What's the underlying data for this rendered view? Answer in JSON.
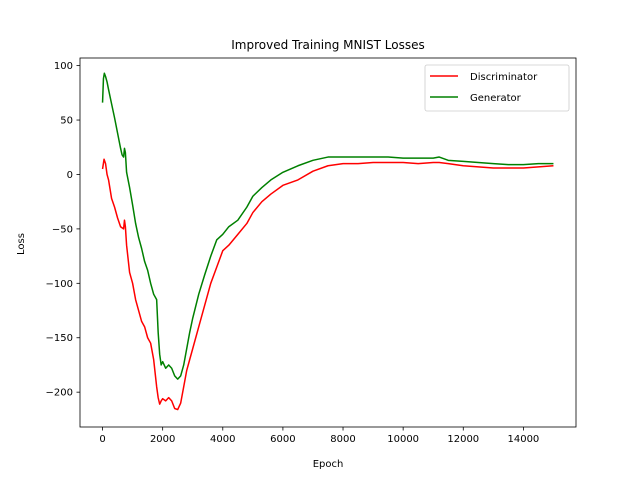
{
  "chart_data": {
    "type": "line",
    "title": "Improved Training MNIST Losses",
    "xlabel": "Epoch",
    "ylabel": "Loss",
    "xlim": [
      -750,
      15750
    ],
    "ylim": [
      -232,
      107
    ],
    "xticks": [
      0,
      2000,
      4000,
      6000,
      8000,
      10000,
      12000,
      14000
    ],
    "xtick_labels": [
      "0",
      "2000",
      "4000",
      "6000",
      "8000",
      "10000",
      "12000",
      "14000"
    ],
    "yticks": [
      100,
      50,
      0,
      -50,
      -100,
      -150,
      -200
    ],
    "ytick_labels": [
      "100",
      "50",
      "0",
      "−50",
      "−100",
      "−150",
      "−200"
    ],
    "grid": false,
    "legend_position": "upper right",
    "series": [
      {
        "name": "Discriminator",
        "color": "#ff0000",
        "x": [
          0,
          50,
          100,
          150,
          200,
          300,
          400,
          500,
          600,
          700,
          730,
          760,
          800,
          900,
          1000,
          1100,
          1200,
          1300,
          1400,
          1500,
          1600,
          1700,
          1800,
          1850,
          1900,
          1950,
          2000,
          2100,
          2200,
          2300,
          2400,
          2500,
          2600,
          2700,
          2800,
          2900,
          3000,
          3200,
          3400,
          3600,
          3800,
          4000,
          4200,
          4500,
          4800,
          5000,
          5300,
          5600,
          6000,
          6500,
          7000,
          7500,
          8000,
          8500,
          9000,
          9500,
          10000,
          10500,
          11000,
          11200,
          11500,
          12000,
          12500,
          13000,
          13500,
          14000,
          14500,
          15000
        ],
        "values": [
          5,
          14,
          10,
          0,
          -5,
          -22,
          -30,
          -40,
          -48,
          -50,
          -42,
          -48,
          -65,
          -90,
          -100,
          -115,
          -125,
          -135,
          -140,
          -150,
          -155,
          -170,
          -195,
          -205,
          -211,
          -208,
          -206,
          -208,
          -205,
          -208,
          -215,
          -216,
          -210,
          -195,
          -180,
          -170,
          -160,
          -140,
          -120,
          -100,
          -85,
          -70,
          -65,
          -55,
          -45,
          -35,
          -25,
          -18,
          -10,
          -5,
          3,
          8,
          10,
          10,
          11,
          11,
          11,
          10,
          11,
          11,
          10,
          8,
          7,
          6,
          6,
          6,
          7,
          8
        ]
      },
      {
        "name": "Generator",
        "color": "#008000",
        "x": [
          0,
          30,
          60,
          100,
          150,
          200,
          300,
          400,
          500,
          600,
          650,
          700,
          730,
          760,
          800,
          900,
          1000,
          1100,
          1200,
          1300,
          1400,
          1500,
          1600,
          1700,
          1800,
          1850,
          1900,
          1950,
          2000,
          2100,
          2200,
          2300,
          2400,
          2500,
          2600,
          2700,
          2800,
          2900,
          3000,
          3200,
          3400,
          3600,
          3800,
          4000,
          4200,
          4500,
          4800,
          5000,
          5300,
          5600,
          6000,
          6500,
          7000,
          7500,
          8000,
          8500,
          9000,
          9500,
          10000,
          10500,
          11000,
          11200,
          11500,
          12000,
          12500,
          13000,
          13500,
          14000,
          14500,
          15000
        ],
        "values": [
          66,
          88,
          93,
          90,
          85,
          78,
          65,
          52,
          38,
          24,
          18,
          16,
          24,
          20,
          2,
          -12,
          -28,
          -45,
          -58,
          -68,
          -80,
          -88,
          -100,
          -110,
          -115,
          -145,
          -165,
          -175,
          -172,
          -178,
          -175,
          -178,
          -185,
          -188,
          -185,
          -175,
          -160,
          -145,
          -132,
          -110,
          -92,
          -75,
          -60,
          -55,
          -48,
          -42,
          -30,
          -20,
          -12,
          -5,
          2,
          8,
          13,
          16,
          16,
          16,
          16,
          16,
          15,
          15,
          15,
          16,
          13,
          12,
          11,
          10,
          9,
          9,
          10,
          10
        ]
      }
    ]
  }
}
